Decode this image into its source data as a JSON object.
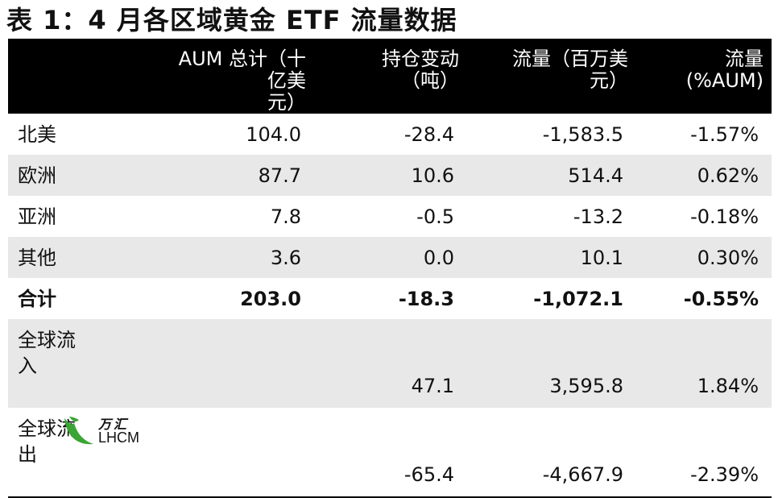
{
  "title": "表 1：4 月各区域黄金 ETF 流量数据",
  "headers": {
    "aum_line1": "AUM 总计（十亿美",
    "aum_line2": "元）",
    "holding_line1": "持仓变动",
    "holding_line2": "（吨）",
    "flow_line1": "流量（百万美",
    "flow_line2": "元）",
    "flowpct_line1": "流量",
    "flowpct_line2": "(%AUM)"
  },
  "rows": [
    {
      "label": "北美",
      "aum": "104.0",
      "holding": "-28.4",
      "flow": "-1,583.5",
      "flowpct": "-1.57%"
    },
    {
      "label": "欧洲",
      "aum": "87.7",
      "holding": "10.6",
      "flow": "514.4",
      "flowpct": "0.62%"
    },
    {
      "label": "亚洲",
      "aum": "7.8",
      "holding": "-0.5",
      "flow": "-13.2",
      "flowpct": "-0.18%"
    },
    {
      "label": "其他",
      "aum": "3.6",
      "holding": "0.0",
      "flow": "10.1",
      "flowpct": "0.30%"
    }
  ],
  "total": {
    "label": "合计",
    "aum": "203.0",
    "holding": "-18.3",
    "flow": "-1,072.1",
    "flowpct": "-0.55%"
  },
  "inflow": {
    "label_line1": "全球流",
    "label_line2": "入",
    "aum": "",
    "holding": "47.1",
    "flow": "3,595.8",
    "flowpct": "1.84%"
  },
  "outflow": {
    "label_line1": "全球流",
    "label_line2": "出",
    "aum": "",
    "holding": "-65.4",
    "flow": "-4,667.9",
    "flowpct": "-2.39%"
  },
  "watermark": {
    "cn": "万汇",
    "en": "LHCM",
    "color": "#3aa535"
  }
}
